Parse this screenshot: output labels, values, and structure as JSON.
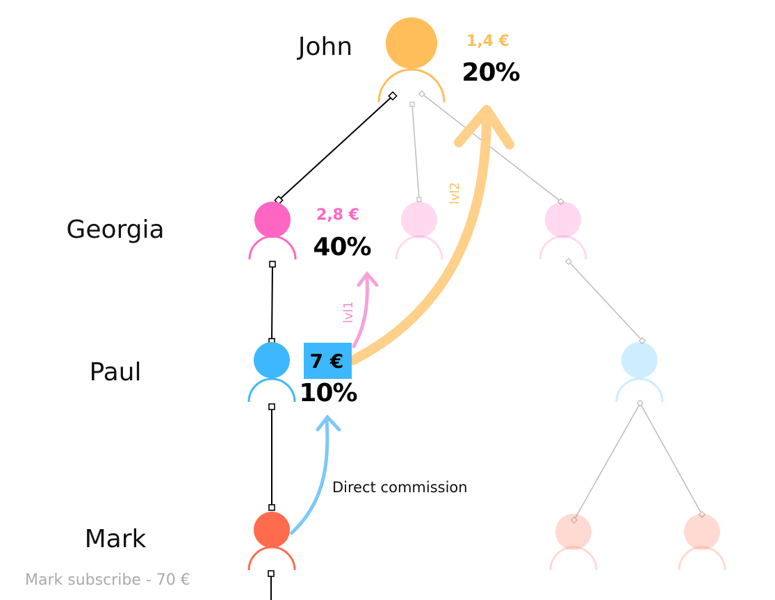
{
  "people": [
    {
      "name": "John",
      "amount": "1,4 €",
      "percent": "20%"
    },
    {
      "name": "Georgia",
      "amount": "2,8 €",
      "percent": "40%"
    },
    {
      "name": "Paul",
      "amount": "7 €",
      "percent": "10%"
    },
    {
      "name": "Mark"
    }
  ],
  "levels": [
    "lvl2",
    "lvl1"
  ],
  "direct_label": "Direct commission",
  "footer": "Mark subscribe - 70 €"
}
